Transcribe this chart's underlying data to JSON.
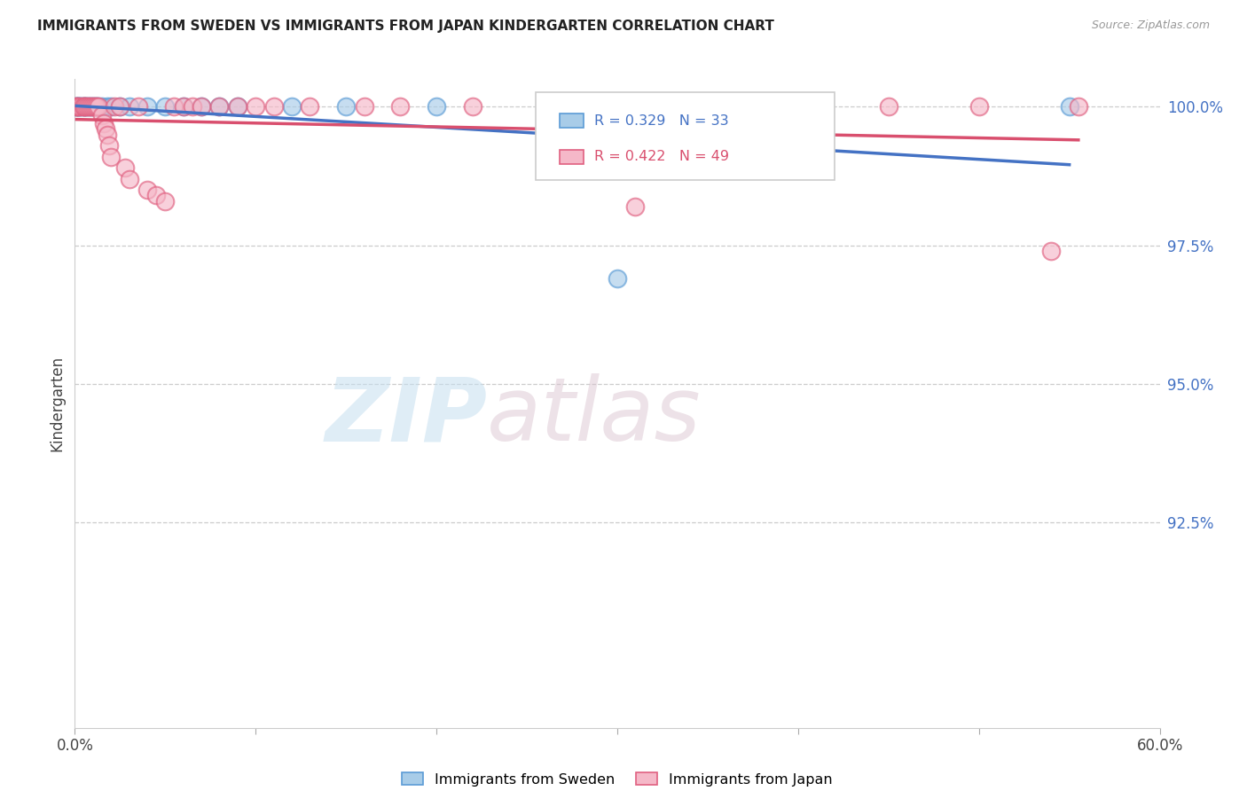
{
  "title": "IMMIGRANTS FROM SWEDEN VS IMMIGRANTS FROM JAPAN KINDERGARTEN CORRELATION CHART",
  "source": "Source: ZipAtlas.com",
  "ylabel": "Kindergarten",
  "legend_sweden": "Immigrants from Sweden",
  "legend_japan": "Immigrants from Japan",
  "r_sweden": 0.329,
  "n_sweden": 33,
  "r_japan": 0.422,
  "n_japan": 49,
  "color_sweden_fill": "#a8cce8",
  "color_sweden_edge": "#5b9bd5",
  "color_japan_fill": "#f5b8c8",
  "color_japan_edge": "#e06080",
  "color_sweden_line": "#4472c4",
  "color_japan_line": "#d94f6e",
  "watermark_zip": "ZIP",
  "watermark_atlas": "atlas",
  "xlim": [
    0.0,
    0.6
  ],
  "ylim": [
    0.888,
    1.005
  ],
  "ytick_positions": [
    0.925,
    0.95,
    0.975,
    1.0
  ],
  "ytick_labels": [
    "92.5%",
    "95.0%",
    "97.5%",
    "100.0%"
  ],
  "sweden_x": [
    0.001,
    0.001,
    0.002,
    0.002,
    0.003,
    0.003,
    0.004,
    0.005,
    0.005,
    0.006,
    0.007,
    0.008,
    0.009,
    0.01,
    0.011,
    0.012,
    0.013,
    0.015,
    0.018,
    0.02,
    0.025,
    0.03,
    0.04,
    0.05,
    0.06,
    0.07,
    0.08,
    0.09,
    0.12,
    0.15,
    0.2,
    0.3,
    0.55
  ],
  "sweden_y": [
    1.0,
    1.0,
    1.0,
    1.0,
    1.0,
    1.0,
    1.0,
    1.0,
    1.0,
    1.0,
    1.0,
    1.0,
    1.0,
    1.0,
    1.0,
    1.0,
    1.0,
    1.0,
    1.0,
    1.0,
    1.0,
    1.0,
    1.0,
    1.0,
    1.0,
    1.0,
    1.0,
    1.0,
    1.0,
    1.0,
    1.0,
    0.969,
    1.0
  ],
  "japan_x": [
    0.001,
    0.001,
    0.002,
    0.003,
    0.004,
    0.005,
    0.005,
    0.006,
    0.007,
    0.008,
    0.009,
    0.01,
    0.011,
    0.012,
    0.013,
    0.015,
    0.016,
    0.017,
    0.018,
    0.019,
    0.02,
    0.022,
    0.025,
    0.028,
    0.03,
    0.035,
    0.04,
    0.045,
    0.05,
    0.055,
    0.06,
    0.065,
    0.07,
    0.08,
    0.09,
    0.1,
    0.11,
    0.13,
    0.16,
    0.18,
    0.22,
    0.27,
    0.31,
    0.35,
    0.4,
    0.45,
    0.5,
    0.54,
    0.555
  ],
  "japan_y": [
    1.0,
    1.0,
    1.0,
    1.0,
    1.0,
    1.0,
    1.0,
    1.0,
    1.0,
    1.0,
    1.0,
    1.0,
    1.0,
    1.0,
    1.0,
    0.9985,
    0.997,
    0.996,
    0.995,
    0.993,
    0.991,
    1.0,
    1.0,
    0.989,
    0.987,
    1.0,
    0.985,
    0.984,
    0.983,
    1.0,
    1.0,
    1.0,
    1.0,
    1.0,
    1.0,
    1.0,
    1.0,
    1.0,
    1.0,
    1.0,
    1.0,
    1.0,
    0.982,
    1.0,
    1.0,
    1.0,
    1.0,
    0.974,
    1.0
  ]
}
